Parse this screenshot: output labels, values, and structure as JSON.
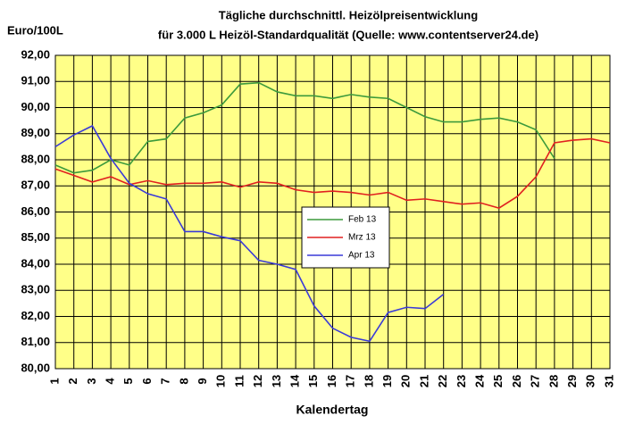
{
  "chart_data": {
    "type": "line",
    "title": "Tägliche durchschnittl. Heizölpreisentwicklung",
    "subtitle": "für 3.000 L Heizöl-Standardqualität (Quelle: www.contentserver24.de)",
    "y_label": "Euro/100L",
    "x_label": "Kalendertag",
    "categories": [
      "1",
      "2",
      "3",
      "4",
      "5",
      "6",
      "7",
      "8",
      "9",
      "10",
      "11",
      "12",
      "13",
      "14",
      "15",
      "16",
      "17",
      "18",
      "19",
      "20",
      "21",
      "22",
      "23",
      "24",
      "25",
      "26",
      "27",
      "28",
      "29",
      "30",
      "31"
    ],
    "series": [
      {
        "name": "Feb 13",
        "color": "#3c9a3c",
        "values": [
          87.8,
          87.5,
          87.6,
          88.0,
          87.8,
          88.7,
          88.8,
          89.6,
          89.8,
          90.1,
          90.9,
          90.95,
          90.6,
          90.45,
          90.45,
          90.35,
          90.5,
          90.4,
          90.35,
          90.0,
          89.65,
          89.45,
          89.45,
          89.55,
          89.6,
          89.45,
          89.15,
          88.05,
          null,
          null,
          null
        ]
      },
      {
        "name": "Mrz 13",
        "color": "#e02020",
        "values": [
          87.65,
          87.4,
          87.15,
          87.35,
          87.05,
          87.2,
          87.05,
          87.1,
          87.1,
          87.15,
          86.95,
          87.15,
          87.1,
          86.85,
          86.75,
          86.8,
          86.75,
          86.65,
          86.75,
          86.45,
          86.5,
          86.4,
          86.3,
          86.35,
          86.15,
          86.6,
          87.35,
          88.65,
          88.75,
          88.8,
          88.65
        ]
      },
      {
        "name": "Apr 13",
        "color": "#3a3ad8",
        "values": [
          88.5,
          88.95,
          89.3,
          88.05,
          87.1,
          86.7,
          86.5,
          85.25,
          85.25,
          85.05,
          84.9,
          84.15,
          84.0,
          83.8,
          82.4,
          81.55,
          81.2,
          81.05,
          82.15,
          82.35,
          82.3,
          82.85,
          null,
          null,
          null,
          null,
          null,
          null,
          null,
          null,
          null
        ]
      }
    ],
    "ylim": [
      80,
      92
    ],
    "yticks": [
      {
        "value": 80,
        "label": "80,00"
      },
      {
        "value": 81,
        "label": "81,00"
      },
      {
        "value": 82,
        "label": "82,00"
      },
      {
        "value": 83,
        "label": "83,00"
      },
      {
        "value": 84,
        "label": "84,00"
      },
      {
        "value": 85,
        "label": "85,00"
      },
      {
        "value": 86,
        "label": "86,00"
      },
      {
        "value": 87,
        "label": "87,00"
      },
      {
        "value": 88,
        "label": "88,00"
      },
      {
        "value": 89,
        "label": "89,00"
      },
      {
        "value": 90,
        "label": "90,00"
      },
      {
        "value": 91,
        "label": "91,00"
      },
      {
        "value": 92,
        "label": "92,00"
      }
    ],
    "grid": true
  }
}
